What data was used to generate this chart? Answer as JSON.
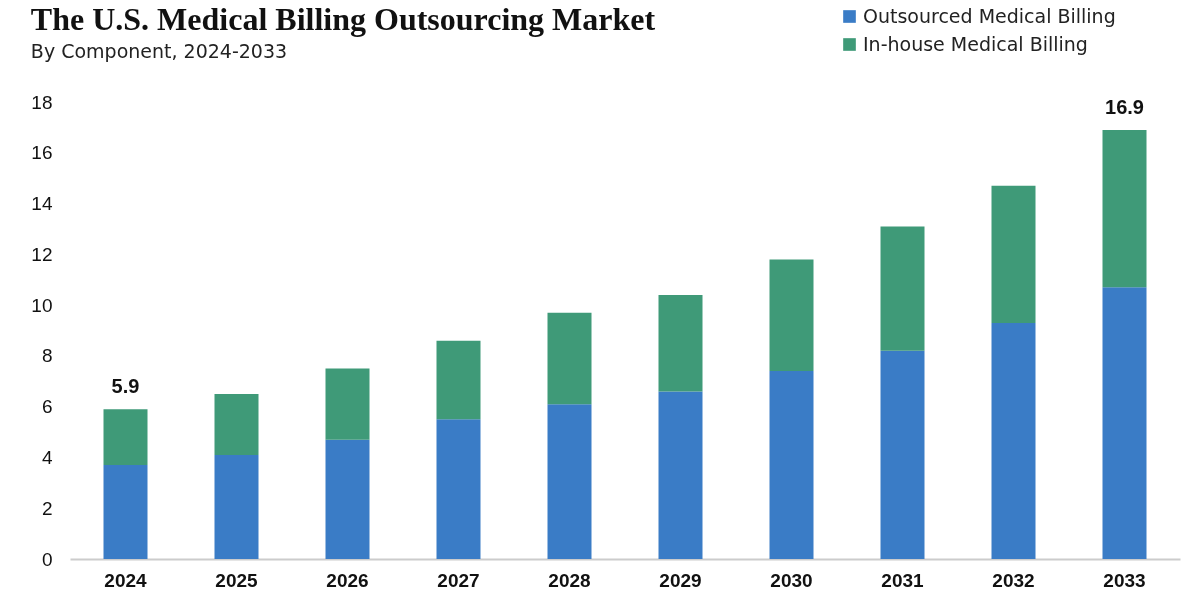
{
  "chart_data": {
    "type": "bar",
    "title": "The U.S. Medical Billing Outsourcing Market",
    "subtitle": "By Component, 2024-2033",
    "categories": [
      "2024",
      "2025",
      "2026",
      "2027",
      "2028",
      "2029",
      "2030",
      "2031",
      "2032",
      "2033"
    ],
    "stacked": true,
    "series": [
      {
        "name": "Outsourced Medical Billing",
        "color": "#3a7cc6",
        "values": [
          3.7,
          4.1,
          4.7,
          5.5,
          6.1,
          6.6,
          7.4,
          8.2,
          9.3,
          10.7
        ]
      },
      {
        "name": "In-house Medical Billing",
        "color": "#3f9a78",
        "values": [
          2.2,
          2.4,
          2.8,
          3.1,
          3.6,
          3.8,
          4.4,
          4.9,
          5.4,
          6.2
        ]
      }
    ],
    "totals": [
      "5.9",
      null,
      null,
      null,
      null,
      null,
      null,
      null,
      null,
      "16.9"
    ],
    "ylim": [
      0,
      18
    ],
    "yticks": [
      0,
      2,
      4,
      6,
      8,
      10,
      12,
      14,
      16,
      18
    ],
    "grid": false,
    "legend": "top right"
  }
}
